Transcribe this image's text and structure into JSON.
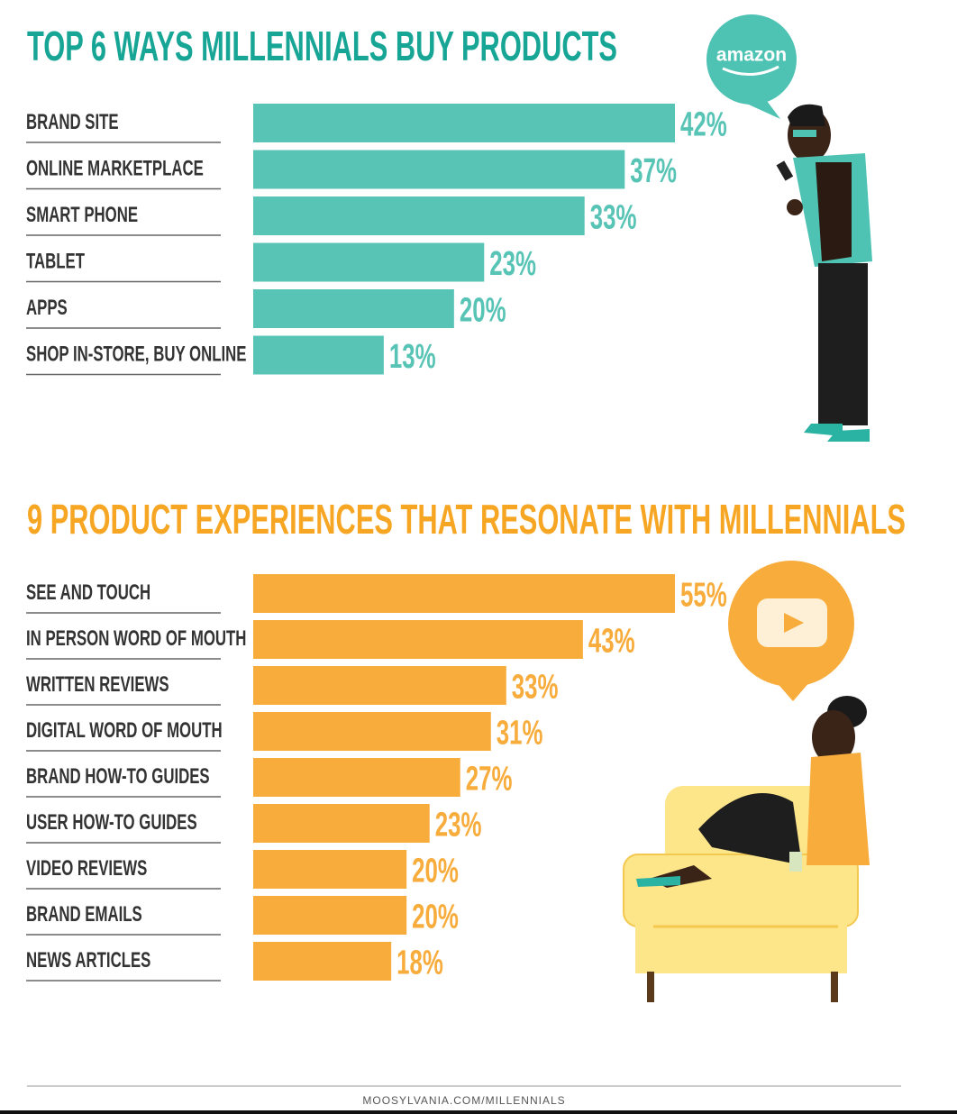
{
  "chart_data": [
    {
      "type": "bar",
      "title": "TOP 6 WAYS MILLENNIALS BUY PRODUCTS",
      "categories": [
        "BRAND SITE",
        "ONLINE MARKETPLACE",
        "SMART PHONE",
        "TABLET",
        "APPS",
        "SHOP IN-STORE, BUY ONLINE"
      ],
      "values": [
        42,
        37,
        33,
        23,
        20,
        13
      ],
      "value_labels": [
        "42%",
        "37%",
        "33%",
        "23%",
        "20%",
        "13%"
      ],
      "color": "#58c4b6",
      "title_color": "#17a596"
    },
    {
      "type": "bar",
      "title": "9 PRODUCT EXPERIENCES THAT RESONATE WITH  MILLENNIALS",
      "categories": [
        "SEE AND TOUCH",
        "IN PERSON WORD OF MOUTH",
        "WRITTEN REVIEWS",
        "DIGITAL WORD OF MOUTH",
        "BRAND HOW-TO GUIDES",
        "USER HOW-TO GUIDES",
        "VIDEO REVIEWS",
        "BRAND EMAILS",
        "NEWS ARTICLES"
      ],
      "values": [
        55,
        43,
        33,
        31,
        27,
        23,
        20,
        20,
        18
      ],
      "value_labels": [
        "55%",
        "43%",
        "33%",
        "31%",
        "27%",
        "23%",
        "20%",
        "20%",
        "18%"
      ],
      "color": "#f7ac3c",
      "title_color": "#f6a623"
    }
  ],
  "bubble_text": "amazon",
  "footer": "MOOSYLVANIA.COM/MILLENNIALS"
}
